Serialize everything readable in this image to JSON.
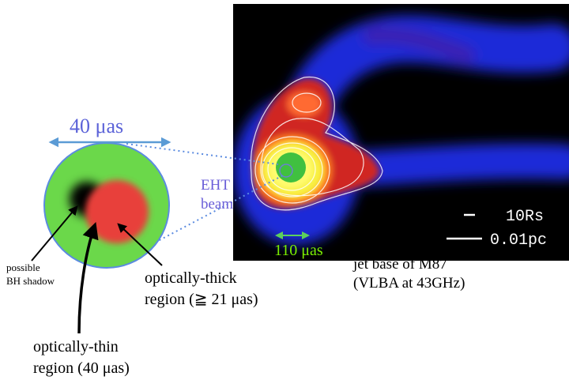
{
  "scale_label": "40 μas",
  "beam_label": [
    "EHT",
    "beam"
  ],
  "core_label": "110 μas",
  "scale_bar": [
    "10Rs",
    "0.01pc"
  ],
  "shadow_label": [
    "possible",
    "BH shadow"
  ],
  "thick_label": [
    "optically-thick",
    "region (≧ 21 μas)"
  ],
  "thin_label": [
    "optically-thin",
    "region (40 μas)"
  ],
  "caption": [
    "jet base of M87",
    "(VLBA at 43GHz)"
  ]
}
